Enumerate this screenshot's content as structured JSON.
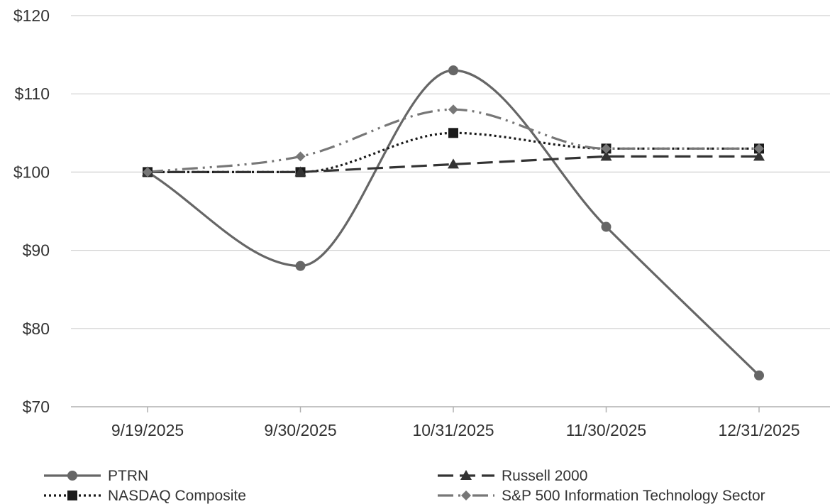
{
  "chart_data": {
    "type": "line",
    "title": "",
    "xlabel": "",
    "ylabel": "",
    "categories": [
      "9/19/2025",
      "9/30/2025",
      "10/31/2025",
      "11/30/2025",
      "12/31/2025"
    ],
    "ylim": [
      70,
      120
    ],
    "yticks": [
      70,
      80,
      90,
      100,
      110,
      120
    ],
    "ytick_labels": [
      "$70",
      "$80",
      "$90",
      "$100",
      "$110",
      "$120"
    ],
    "grid": "horizontal",
    "legend_position": "bottom",
    "series": [
      {
        "name": "PTRN",
        "values": [
          100,
          88,
          113,
          93,
          74
        ],
        "color": "#666666",
        "marker": "circle",
        "dash": "solid",
        "smooth": true
      },
      {
        "name": "NASDAQ Composite",
        "values": [
          100,
          100,
          105,
          103,
          103
        ],
        "color": "#1a1a1a",
        "marker": "square",
        "dash": "dotted",
        "smooth": true
      },
      {
        "name": "Russell 2000",
        "values": [
          100,
          100,
          101,
          102,
          102
        ],
        "color": "#333333",
        "marker": "triangle",
        "dash": "dashed",
        "smooth": false
      },
      {
        "name": "S&P 500 Information Technology Sector",
        "values": [
          100,
          102,
          108,
          103,
          103
        ],
        "color": "#777777",
        "marker": "diamond",
        "dash": "dashdot",
        "smooth": true
      }
    ]
  }
}
